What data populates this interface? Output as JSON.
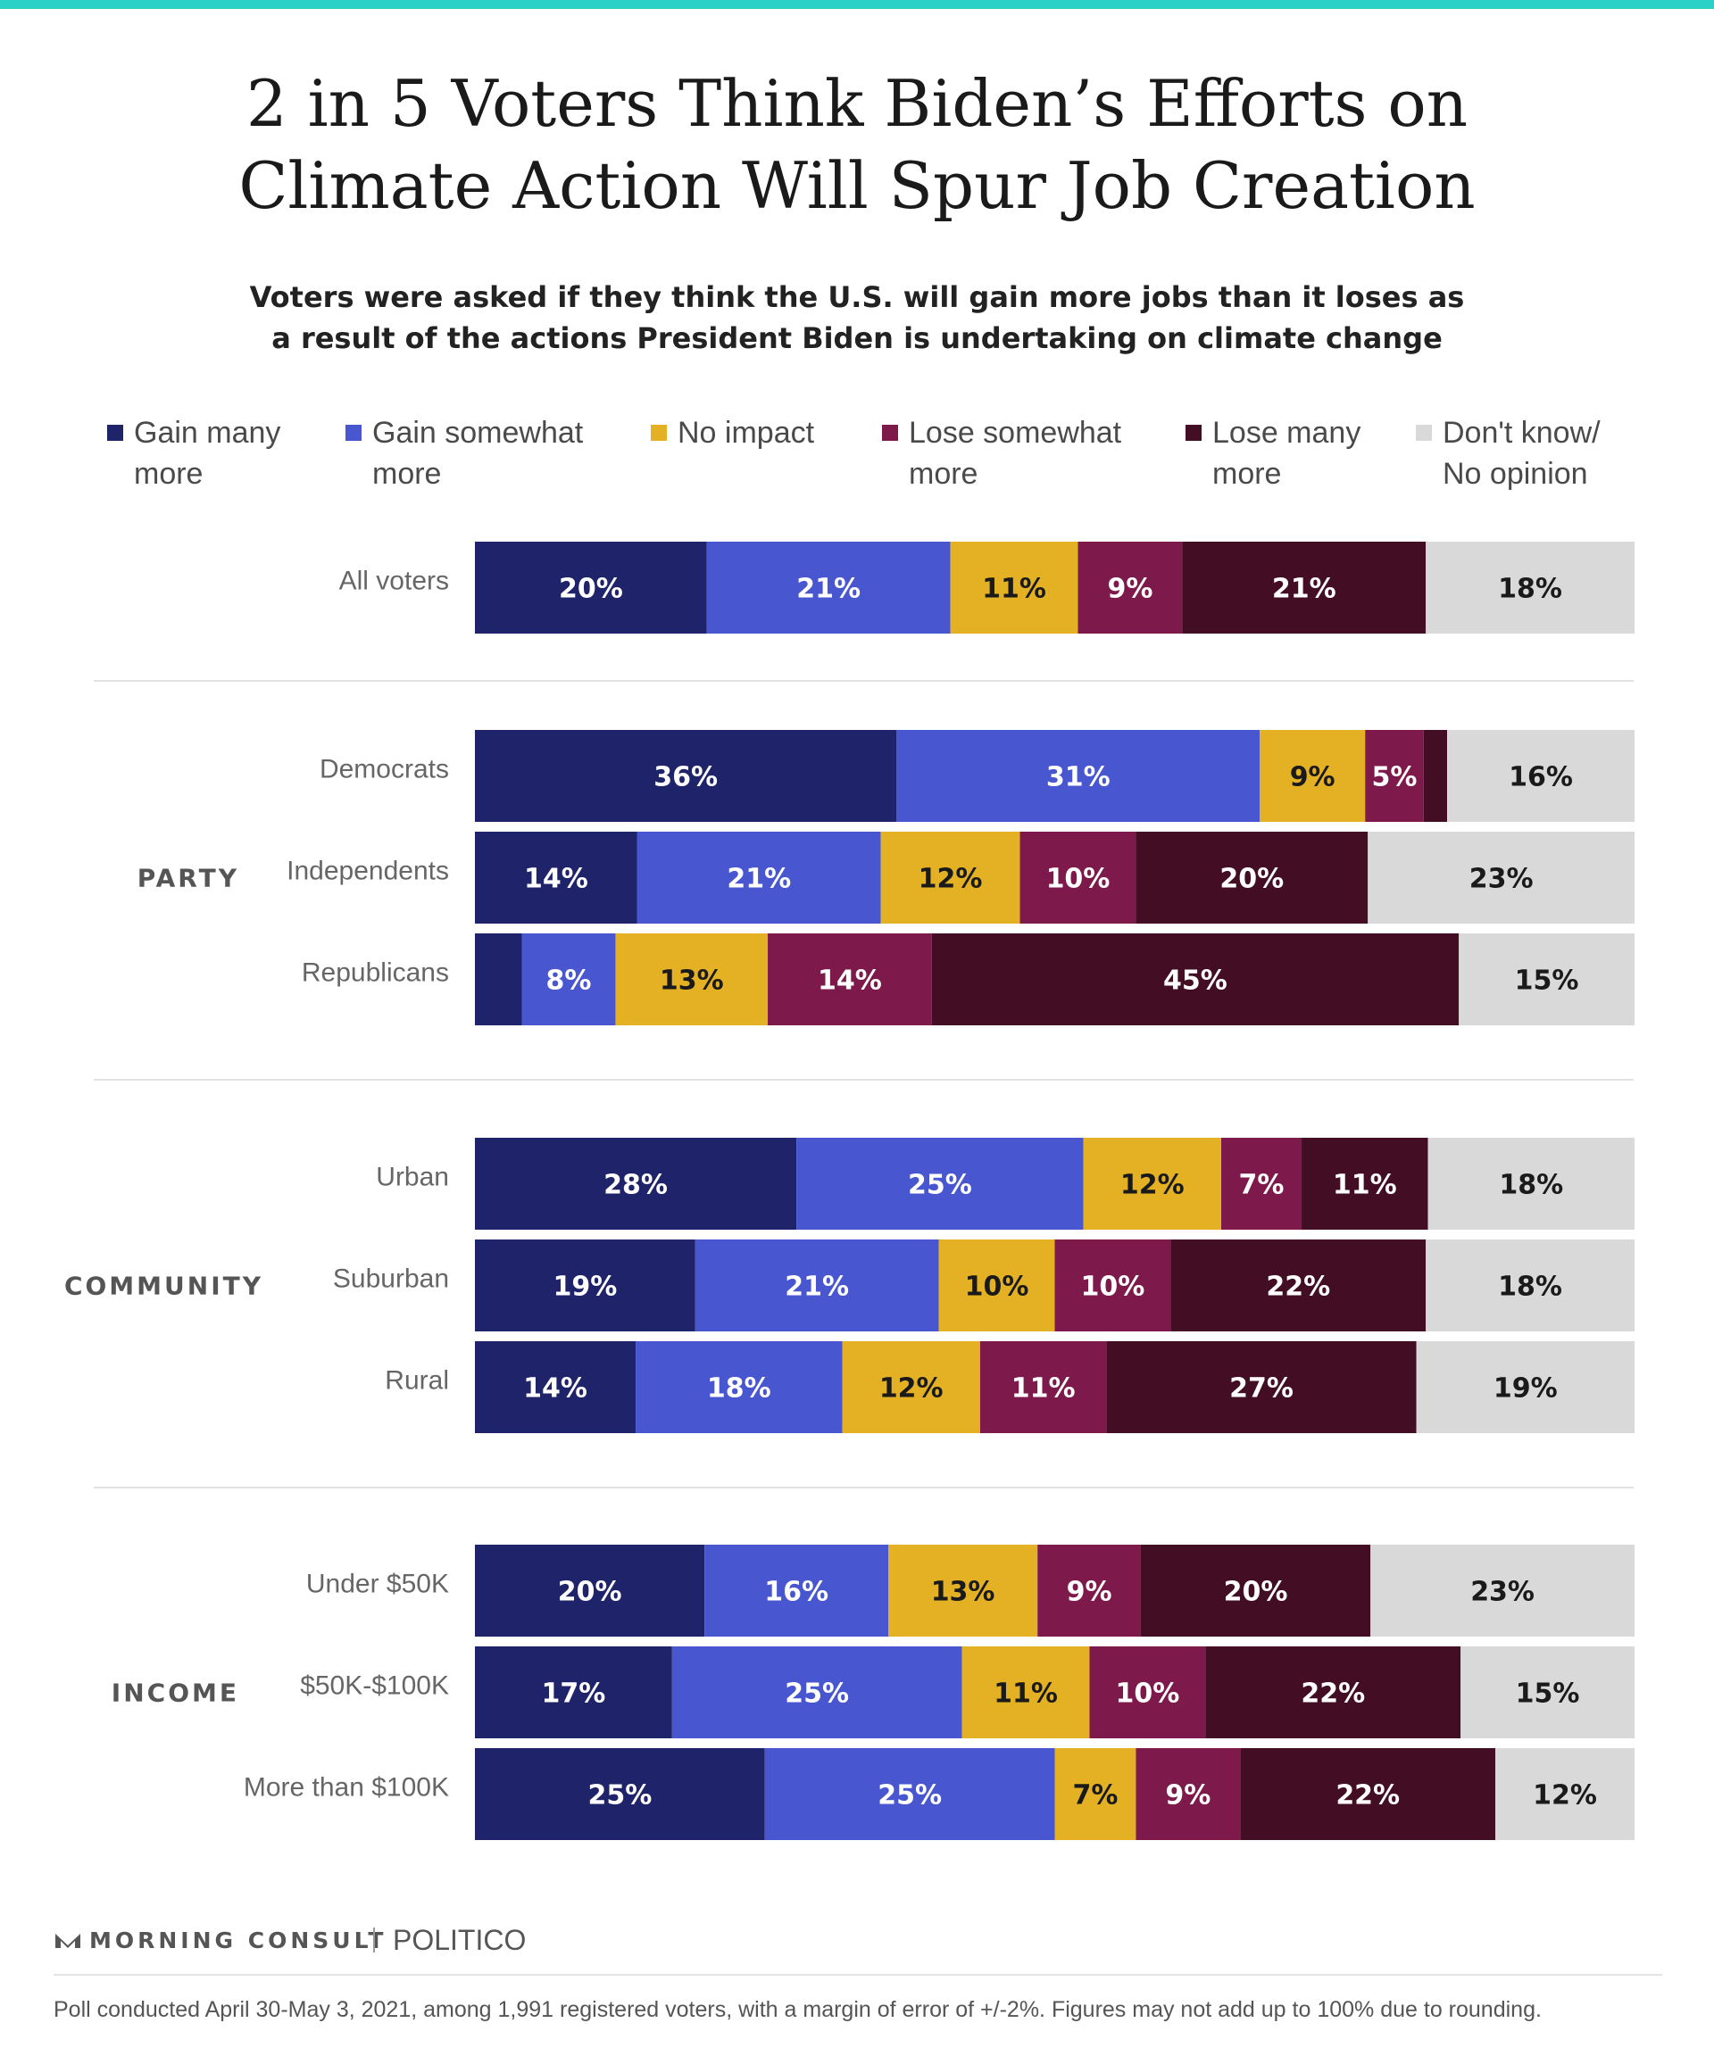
{
  "title_line1": "2 in 5 Voters Think Biden’s Efforts on",
  "title_line2": "Climate Action Will Spur Job Creation",
  "subtitle_line1": "Voters were asked if they think the U.S. will gain more jobs than it loses as",
  "subtitle_line2": "a result of the actions President Biden is undertaking on climate change",
  "legend": [
    {
      "line1": "Gain many",
      "line2": "more",
      "color": "#1f246a"
    },
    {
      "line1": "Gain somewhat",
      "line2": "more",
      "color": "#4857d0"
    },
    {
      "line1": "No impact",
      "line2": "",
      "color": "#e3b123"
    },
    {
      "line1": "Lose somewhat",
      "line2": "more",
      "color": "#7e1a4b"
    },
    {
      "line1": "Lose many",
      "line2": "more",
      "color": "#430e24"
    },
    {
      "line1": "Don't know/",
      "line2": "No opinion",
      "color": "#d9d9d9"
    }
  ],
  "chart_data": {
    "type": "bar",
    "orientation": "horizontal-stacked-100",
    "unit": "%",
    "series": [
      "Gain many more",
      "Gain somewhat more",
      "No impact",
      "Lose somewhat more",
      "Lose many more",
      "Don't know/No opinion"
    ],
    "groups": [
      {
        "name": "",
        "rows": [
          {
            "label": "All voters",
            "values": [
              20,
              21,
              11,
              9,
              21,
              18
            ]
          }
        ]
      },
      {
        "name": "PARTY",
        "rows": [
          {
            "label": "Democrats",
            "values": [
              36,
              31,
              9,
              5,
              2,
              16
            ]
          },
          {
            "label": "Independents",
            "values": [
              14,
              21,
              12,
              10,
              20,
              23
            ]
          },
          {
            "label": "Republicans",
            "values": [
              4,
              8,
              13,
              14,
              45,
              15
            ]
          }
        ]
      },
      {
        "name": "COMMUNITY",
        "rows": [
          {
            "label": "Urban",
            "values": [
              28,
              25,
              12,
              7,
              11,
              18
            ]
          },
          {
            "label": "Suburban",
            "values": [
              19,
              21,
              10,
              10,
              22,
              18
            ]
          },
          {
            "label": "Rural",
            "values": [
              14,
              18,
              12,
              11,
              27,
              19
            ]
          }
        ]
      },
      {
        "name": "INCOME",
        "rows": [
          {
            "label": "Under $50K",
            "values": [
              20,
              16,
              13,
              9,
              20,
              23
            ]
          },
          {
            "label": "$50K-$100K",
            "values": [
              17,
              25,
              11,
              10,
              22,
              15
            ]
          },
          {
            "label": "More than $100K",
            "values": [
              25,
              25,
              7,
              9,
              22,
              12
            ]
          }
        ]
      }
    ],
    "hidden_labels": [
      {
        "group": 1,
        "row": 0,
        "segment": 4
      },
      {
        "group": 1,
        "row": 2,
        "segment": 0
      }
    ]
  },
  "footer": {
    "brand": "MORNING CONSULT",
    "partner": "POLITICO",
    "note": "Poll conducted April 30-May 3, 2021, among 1,991 registered voters, with a margin of error of +/-2%. Figures may not add up to 100% due to rounding."
  }
}
